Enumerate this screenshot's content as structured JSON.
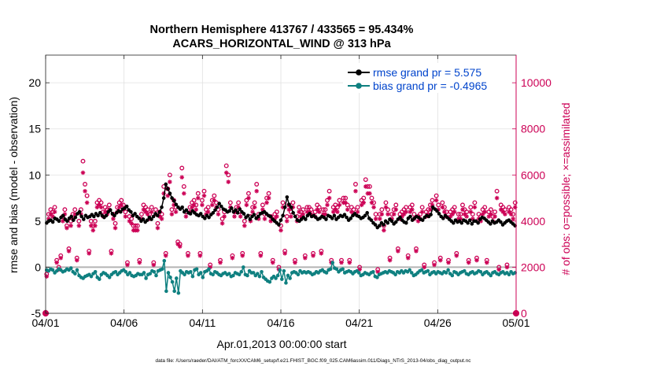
{
  "chart_data": {
    "type": "line",
    "title_line1": "Northern Hemisphere 413767 / 433565 = 95.434%",
    "title_line2": "ACARS_HORIZONTAL_WIND @ 313 hPa",
    "xlabel": "Apr.01,2013 00:00:00 start",
    "ylabel_left": "rmse and bias (model - observation)",
    "ylabel_right": "# of obs: o=possible; ×=assimilated",
    "footnote": "data file: /Users/raeder/DAI/ATM_forcXX/CAM6_setup/f.e21.FHIST_BGC.f09_025.CAM6assim.011/Diags_NTrS_2013-04/obs_diag_output.nc",
    "xlim": [
      0,
      30
    ],
    "ylim_left": [
      -5,
      23
    ],
    "ylim_right": [
      0,
      11200
    ],
    "x_ticks": [
      0,
      5,
      10,
      15,
      20,
      25,
      30
    ],
    "x_tick_labels": [
      "04/01",
      "04/06",
      "04/11",
      "04/16",
      "04/21",
      "04/26",
      "05/01"
    ],
    "y_left_ticks": [
      -5,
      0,
      5,
      10,
      15,
      20
    ],
    "y_left_tick_labels": [
      "-5",
      "0",
      "5",
      "10",
      "15",
      "20"
    ],
    "y_right_ticks": [
      0,
      2000,
      4000,
      6000,
      8000,
      10000
    ],
    "y_right_tick_labels": [
      "0",
      "2000",
      "4000",
      "6000",
      "8000",
      "10000"
    ],
    "legend_position": "top-right",
    "colors": {
      "rmse": "#000000",
      "bias": "#0f8080",
      "obs": "#cc0055",
      "legend_text": "#0044cc",
      "grid": "#e0e0e0",
      "zero_line": "#b3b3b3"
    },
    "series": [
      {
        "name": "rmse grand pr = 5.575",
        "key": "rmse",
        "axis": "left",
        "values": [
          4.8,
          5.0,
          5.1,
          4.9,
          5.3,
          5.2,
          5.0,
          5.4,
          5.6,
          5.2,
          5.0,
          5.3,
          5.5,
          5.1,
          5.4,
          5.8,
          6.0,
          5.5,
          5.2,
          5.6,
          5.4,
          5.5,
          5.7,
          5.5,
          5.8,
          5.6,
          5.9,
          5.6,
          5.4,
          5.6,
          6.0,
          6.2,
          5.8,
          5.6,
          5.9,
          6.1,
          6.0,
          6.3,
          6.4,
          6.6,
          6.2,
          6.0,
          5.6,
          5.8,
          5.5,
          5.3,
          5.0,
          5.2,
          4.9,
          5.1,
          5.4,
          5.2,
          5.5,
          5.8,
          5.6,
          6.0,
          6.5,
          7.5,
          9.0,
          8.5,
          8.0,
          7.5,
          7.2,
          6.8,
          6.5,
          6.3,
          6.5,
          6.0,
          6.2,
          5.9,
          5.8,
          6.1,
          5.9,
          5.7,
          5.6,
          5.8,
          5.5,
          5.3,
          5.6,
          5.4,
          5.7,
          5.9,
          6.2,
          6.5,
          6.9,
          6.6,
          6.3,
          6.2,
          6.0,
          6.1,
          6.4,
          6.0,
          6.2,
          5.9,
          6.3,
          6.0,
          5.8,
          5.4,
          5.6,
          5.2,
          5.5,
          5.7,
          5.3,
          5.5,
          5.8,
          5.9,
          6.0,
          5.8,
          5.6,
          5.5,
          5.2,
          5.0,
          4.8,
          4.6,
          5.1,
          5.6,
          6.5,
          7.6,
          6.8,
          6.5,
          5.9,
          5.5,
          5.1,
          5.0,
          5.2,
          5.4,
          5.2,
          5.6,
          5.8,
          5.5,
          5.6,
          5.4,
          5.2,
          5.3,
          5.5,
          5.4,
          5.2,
          5.6,
          5.5,
          5.3,
          5.6,
          5.2,
          5.4,
          5.6,
          5.5,
          5.7,
          5.4,
          5.1,
          5.3,
          5.6,
          5.8,
          5.6,
          5.5,
          5.3,
          5.4,
          5.6,
          5.9,
          5.3,
          5.1,
          4.8,
          4.6,
          4.3,
          4.5,
          4.8,
          4.6,
          5.0,
          4.8,
          5.2,
          5.0,
          4.7,
          4.9,
          5.2,
          5.4,
          5.1,
          4.9,
          4.8,
          5.3,
          5.5,
          5.1,
          5.3,
          5.5,
          5.4,
          5.2,
          5.1,
          5.4,
          5.6,
          5.5,
          5.7,
          6.5,
          6.3,
          6.1,
          5.8,
          5.5,
          5.3,
          5.6,
          5.4,
          5.2,
          5.0,
          4.8,
          5.1,
          4.9,
          5.0,
          4.8,
          5.1,
          5.0,
          4.8,
          5.1,
          4.7,
          5.0,
          5.0,
          4.8,
          5.2,
          5.4,
          5.3,
          5.1,
          4.9,
          4.7,
          5.0,
          4.8,
          4.9,
          5.1,
          4.9,
          4.6,
          4.8,
          5.0,
          5.1,
          4.9,
          4.7,
          4.5
        ]
      },
      {
        "name": "bias grand pr = -0.4965",
        "key": "bias",
        "axis": "left",
        "values": [
          -0.3,
          -0.4,
          -0.2,
          -0.3,
          -0.6,
          -0.4,
          -0.2,
          -0.3,
          -0.5,
          -0.4,
          -0.2,
          -0.3,
          -0.1,
          -0.5,
          -0.7,
          -0.3,
          -0.9,
          -1.1,
          -1.2,
          -1.0,
          -0.9,
          -0.8,
          -1.0,
          -0.7,
          -0.5,
          -1.1,
          -1.3,
          -0.8,
          -0.6,
          -0.7,
          -0.9,
          -1.1,
          -0.8,
          -0.6,
          -0.5,
          -0.8,
          -0.6,
          -0.4,
          -0.3,
          -0.5,
          -0.8,
          -0.6,
          -0.9,
          -1.0,
          -0.9,
          -0.7,
          -0.8,
          -0.8,
          -0.6,
          -1.2,
          -0.8,
          -0.7,
          -0.4,
          -0.5,
          -0.9,
          -0.4,
          -0.3,
          -0.2,
          0.7,
          -2.6,
          -0.6,
          -1.1,
          -1.6,
          -2.6,
          -1.2,
          -2.8,
          -0.4,
          -0.6,
          -0.8,
          -0.5,
          -0.6,
          -0.5,
          -1.0,
          -0.3,
          -0.2,
          -0.8,
          -0.6,
          -1.1,
          -0.5,
          -0.4,
          -0.2,
          -0.7,
          -0.8,
          -0.5,
          -0.6,
          -0.8,
          -0.9,
          -0.7,
          -0.6,
          -0.8,
          -0.7,
          -1.0,
          -0.9,
          -0.6,
          -0.7,
          -0.8,
          -0.5,
          0.0,
          -0.8,
          -0.9,
          -0.4,
          -0.6,
          -0.6,
          -0.9,
          -0.7,
          -1.0,
          -0.5,
          -1.1,
          -1.3,
          -1.5,
          -1.6,
          -1.2,
          -1.0,
          -1.2,
          -0.9,
          -0.3,
          -1.3,
          -0.4,
          -1.7,
          -0.9,
          -1.2,
          -0.6,
          -0.5,
          -0.6,
          -0.8,
          -0.4,
          -0.6,
          -0.5,
          -0.6,
          -0.5,
          -0.6,
          -0.8,
          -0.7,
          -0.5,
          -0.6,
          -0.4,
          -0.3,
          -0.5,
          -0.6,
          -0.3,
          -0.2,
          0.5,
          -0.1,
          -0.2,
          -0.5,
          -0.3,
          -0.2,
          -0.6,
          -0.5,
          -0.4,
          -0.5,
          -0.7,
          -0.5,
          -0.4,
          -0.6,
          -0.9,
          -0.8,
          -0.6,
          -0.7,
          -0.8,
          -0.6,
          -0.5,
          -1.0,
          -1.1,
          -0.8,
          -0.7,
          -0.6,
          -0.5,
          -0.6,
          -0.4,
          -0.5,
          -0.6,
          -0.8,
          -0.5,
          -0.6,
          -0.4,
          -0.6,
          -0.4,
          -0.5,
          -0.3,
          -0.6,
          -0.9,
          -0.8,
          -0.6,
          -0.4,
          -0.3,
          -0.6,
          -0.5,
          -0.4,
          -0.8,
          -0.6,
          -0.5,
          -0.7,
          -0.5,
          -0.6,
          -0.7,
          -0.5,
          -0.6,
          -0.3,
          -0.7,
          -0.9,
          -0.5,
          -0.6,
          -0.8,
          -0.6,
          -0.5,
          -0.4,
          -0.7,
          -0.8,
          -0.6,
          -0.5,
          -0.7,
          -0.6,
          -0.4,
          -0.5,
          -0.8,
          -0.6,
          -0.5,
          -0.7,
          -0.9,
          -0.6,
          -0.5,
          -0.7,
          -0.8,
          -0.6,
          -0.5,
          -0.7,
          -0.6,
          -0.8,
          -0.5,
          -0.7,
          -0.6
        ]
      },
      {
        "name": "obs possible",
        "key": "possible",
        "axis": "right",
        "values": [
          1700,
          4300,
          4500,
          4400,
          4600,
          2300,
          2000,
          2500,
          4200,
          4500,
          3800,
          2800,
          4000,
          4300,
          4500,
          2400,
          4000,
          4500,
          6600,
          5600,
          5100,
          2700,
          4000,
          3800,
          4000,
          4800,
          4900,
          4800,
          4400,
          4600,
          4500,
          4700,
          2700,
          4300,
          3900,
          4600,
          4800,
          4900,
          4700,
          4400,
          2200,
          4200,
          4100,
          3800,
          3800,
          3800,
          2300,
          4300,
          4700,
          4600,
          4500,
          4300,
          4600,
          2200,
          4500,
          3900,
          4400,
          4300,
          5500,
          2600,
          5400,
          6000,
          4500,
          4900,
          4600,
          3100,
          3000,
          6300,
          5500,
          4400,
          2600,
          4600,
          4800,
          4900,
          4700,
          5200,
          2600,
          4900,
          5300,
          4500,
          4600,
          2100,
          4900,
          5100,
          4800,
          4500,
          2300,
          4100,
          4400,
          6400,
          6000,
          4800,
          2500,
          4400,
          4600,
          4800,
          4400,
          2600,
          4000,
          4900,
          5200,
          4200,
          4600,
          4800,
          5600,
          4300,
          2600,
          4700,
          4300,
          5000,
          5200,
          4200,
          2300,
          4300,
          4400,
          2000,
          3800,
          4800,
          2700,
          4200,
          4700,
          4400,
          4800,
          2300,
          4200,
          4600,
          4400,
          4500,
          2500,
          4600,
          4600,
          4500,
          2600,
          4400,
          4700,
          4600,
          2700,
          4500,
          4500,
          4900,
          5300,
          2300,
          4600,
          4700,
          4600,
          4900,
          2300,
          5000,
          5000,
          4700,
          2300,
          4600,
          4500,
          5600,
          4600,
          2000,
          4900,
          5000,
          5800,
          5500,
          5500,
          5000,
          4800,
          4300,
          1900,
          4300,
          4500,
          3800,
          4800,
          4500,
          2400,
          4300,
          4500,
          4700,
          2800,
          4300,
          4400,
          4500,
          4600,
          2500,
          4600,
          4700,
          4300,
          2800,
          4200,
          4300,
          4600,
          2100,
          4400,
          4500,
          4700,
          4900,
          2200,
          5100,
          4700,
          2400,
          4800,
          4600,
          4400,
          2300,
          4400,
          4500,
          4600,
          2600,
          4300,
          4300,
          4700,
          4500,
          4400,
          2300,
          4600,
          4300,
          4800,
          2400,
          4300,
          4200,
          4500,
          4600,
          2300,
          4400,
          4500,
          4200,
          4400,
          5300,
          2000,
          4700,
          4600,
          4500,
          2100,
          4600,
          4500,
          4300,
          4800
        ]
      },
      {
        "name": "obs assimilated",
        "key": "assimilated",
        "axis": "right",
        "values": [
          1600,
          4100,
          4300,
          4200,
          4400,
          2200,
          1900,
          2400,
          4000,
          4300,
          3700,
          2700,
          3800,
          4100,
          4300,
          2300,
          3800,
          4300,
          6100,
          5300,
          4800,
          2600,
          3800,
          3600,
          3800,
          4600,
          4700,
          4600,
          4200,
          4400,
          4300,
          4500,
          2600,
          4100,
          3700,
          4400,
          4600,
          4700,
          4500,
          4200,
          2100,
          4000,
          3900,
          3600,
          3600,
          3600,
          2200,
          4100,
          4500,
          4400,
          4300,
          4100,
          4400,
          2100,
          4300,
          3700,
          4200,
          4100,
          5200,
          2500,
          5100,
          5700,
          4300,
          4700,
          4400,
          3000,
          2900,
          5900,
          5200,
          4200,
          2500,
          4400,
          4600,
          4700,
          4500,
          5000,
          2500,
          4700,
          5100,
          4300,
          4400,
          2000,
          4700,
          4900,
          4600,
          4300,
          2200,
          3900,
          4200,
          6100,
          5700,
          4600,
          2400,
          4200,
          4400,
          4600,
          4200,
          2500,
          3800,
          4700,
          5000,
          4000,
          4400,
          4600,
          5300,
          4100,
          2500,
          4500,
          4100,
          4800,
          5000,
          4000,
          2200,
          4100,
          4200,
          1900,
          3600,
          4600,
          2600,
          4000,
          4500,
          4200,
          4600,
          2200,
          4000,
          4400,
          4200,
          4300,
          2400,
          4400,
          4400,
          4300,
          2500,
          4200,
          4500,
          4400,
          2600,
          4300,
          4300,
          4700,
          5000,
          2200,
          4400,
          4500,
          4400,
          4700,
          2200,
          4800,
          4800,
          4500,
          2200,
          4400,
          4300,
          5300,
          4400,
          1900,
          4700,
          4800,
          5500,
          5200,
          5200,
          4800,
          4600,
          4100,
          1800,
          4100,
          4300,
          3600,
          4600,
          4300,
          2300,
          4100,
          4300,
          4500,
          2700,
          4100,
          4200,
          4300,
          4400,
          2400,
          4400,
          4500,
          4100,
          2700,
          4000,
          4100,
          4400,
          2000,
          4200,
          4300,
          4500,
          4700,
          2100,
          4900,
          4500,
          2300,
          4600,
          4400,
          4200,
          2200,
          4200,
          4300,
          4400,
          2500,
          4100,
          4100,
          4500,
          4300,
          4200,
          2200,
          4400,
          4100,
          4600,
          2300,
          4100,
          4000,
          4300,
          4400,
          2200,
          4200,
          4300,
          4000,
          4200,
          5000,
          1900,
          4500,
          4400,
          4300,
          2000,
          4400,
          4300,
          4100,
          4600
        ]
      }
    ],
    "endpoint_marker_values": [
      0,
      0
    ]
  }
}
